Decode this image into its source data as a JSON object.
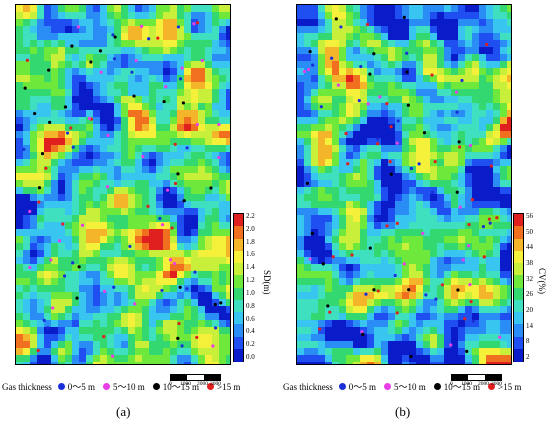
{
  "panels": [
    {
      "caption": "(a)",
      "colorbar": {
        "title": "SD(m)",
        "ticks": [
          "2.2",
          "2.0",
          "1.8",
          "1.6",
          "1.4",
          "1.2",
          "1.0",
          "0.8",
          "0.6",
          "0.4",
          "0.2",
          "0.0"
        ]
      },
      "legend": {
        "title": "Gas thickness",
        "items": [
          {
            "label": "0～5 m",
            "color": "#1a2fd8"
          },
          {
            "label": "5～10 m",
            "color": "#e83ee8"
          },
          {
            "label": "10～15 m",
            "color": "#000000"
          },
          {
            "label": ">15 m",
            "color": "#e0201f"
          }
        ]
      },
      "scale": {
        "ticks": [
          "0",
          "1000",
          "2000",
          "3000"
        ]
      }
    },
    {
      "caption": "(b)",
      "colorbar": {
        "title": "CV(%)",
        "ticks": [
          "56",
          "50",
          "44",
          "38",
          "32",
          "26",
          "20",
          "14",
          "8",
          "2"
        ]
      },
      "legend": {
        "title": "Gas thickness",
        "items": [
          {
            "label": "0～5 m",
            "color": "#1a2fd8"
          },
          {
            "label": "5～10 m",
            "color": "#e83ee8"
          },
          {
            "label": "10～15 m",
            "color": "#000000"
          },
          {
            "label": ">15 m",
            "color": "#e0201f"
          }
        ]
      },
      "scale": {
        "ticks": [
          "0",
          "1000",
          "2000",
          "3000"
        ]
      }
    }
  ],
  "chart_data": [
    {
      "type": "heatmap",
      "title": "",
      "colorbar_label": "SD(m)",
      "colorbar_range": [
        0.0,
        2.2
      ],
      "colorbar_ticks": [
        0.0,
        0.2,
        0.4,
        0.6,
        0.8,
        1.0,
        1.2,
        1.4,
        1.6,
        1.8,
        2.0,
        2.2
      ],
      "colors": [
        "#0a1bc9",
        "#1f4ff0",
        "#2a8df5",
        "#38c6f0",
        "#3fe0c0",
        "#33d870",
        "#6ee83a",
        "#c8f03a",
        "#f5f03a",
        "#f5b52a",
        "#f0701f",
        "#e0201f"
      ],
      "well_categories": [
        "0～5 m",
        "5～10 m",
        "10～15 m",
        ">15 m"
      ],
      "scale_m": [
        0,
        1000,
        2000,
        3000
      ]
    },
    {
      "type": "heatmap",
      "title": "",
      "colorbar_label": "CV(%)",
      "colorbar_range": [
        2,
        56
      ],
      "colorbar_ticks": [
        2,
        8,
        14,
        20,
        26,
        32,
        38,
        44,
        50,
        56
      ],
      "colors": [
        "#0a1bc9",
        "#1f4ff0",
        "#2a8df5",
        "#38c6f0",
        "#3fe0c0",
        "#33d870",
        "#6ee83a",
        "#c8f03a",
        "#f5f03a",
        "#f5b52a",
        "#f0701f",
        "#e0201f"
      ],
      "well_categories": [
        "0～5 m",
        "5～10 m",
        "10～15 m",
        ">15 m"
      ],
      "scale_m": [
        0,
        1000,
        2000,
        3000
      ]
    }
  ]
}
